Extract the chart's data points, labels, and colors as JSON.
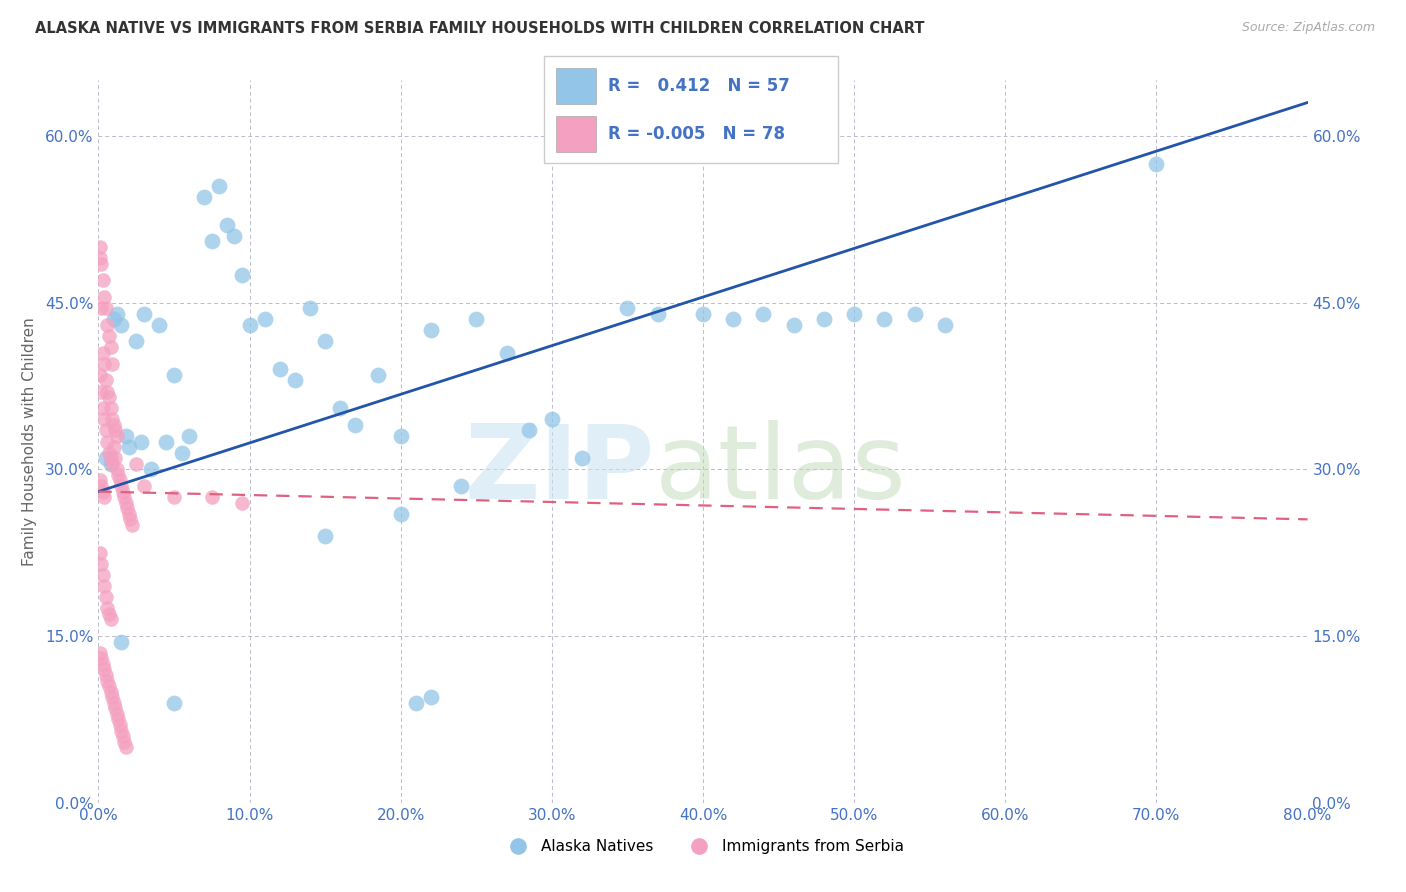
{
  "title": "ALASKA NATIVE VS IMMIGRANTS FROM SERBIA FAMILY HOUSEHOLDS WITH CHILDREN CORRELATION CHART",
  "source": "Source: ZipAtlas.com",
  "xlabel_ticks": [
    "0.0%",
    "10.0%",
    "20.0%",
    "30.0%",
    "40.0%",
    "50.0%",
    "60.0%",
    "70.0%",
    "80.0%"
  ],
  "xlabel_vals": [
    0,
    10,
    20,
    30,
    40,
    50,
    60,
    70,
    80
  ],
  "ylabel_ticks": [
    "0.0%",
    "15.0%",
    "30.0%",
    "45.0%",
    "60.0%"
  ],
  "ylabel_vals": [
    0,
    15,
    30,
    45,
    60
  ],
  "ylabel_label": "Family Households with Children",
  "xlim": [
    0,
    80
  ],
  "ylim": [
    0,
    65
  ],
  "legend_r_blue": "0.412",
  "legend_n_blue": "57",
  "legend_r_pink": "-0.005",
  "legend_n_pink": "78",
  "blue_color": "#92C5E8",
  "pink_color": "#F4A0C0",
  "trend_blue_color": "#2255AA",
  "trend_pink_color": "#E06080",
  "blue_trend_x0": 0,
  "blue_trend_y0": 28.0,
  "blue_trend_x1": 80,
  "blue_trend_y1": 63.0,
  "pink_trend_x0": 0,
  "pink_trend_y0": 28.0,
  "pink_trend_x1": 80,
  "pink_trend_y1": 25.5,
  "blue_scatter": [
    [
      0.5,
      31.0
    ],
    [
      0.8,
      30.5
    ],
    [
      1.0,
      43.5
    ],
    [
      1.2,
      44.0
    ],
    [
      1.5,
      43.0
    ],
    [
      1.8,
      33.0
    ],
    [
      2.0,
      32.0
    ],
    [
      2.5,
      41.5
    ],
    [
      2.8,
      32.5
    ],
    [
      3.0,
      44.0
    ],
    [
      3.5,
      30.0
    ],
    [
      4.0,
      43.0
    ],
    [
      4.5,
      32.5
    ],
    [
      5.0,
      38.5
    ],
    [
      5.5,
      31.5
    ],
    [
      6.0,
      33.0
    ],
    [
      7.0,
      54.5
    ],
    [
      7.5,
      50.5
    ],
    [
      8.0,
      55.5
    ],
    [
      8.5,
      52.0
    ],
    [
      9.0,
      51.0
    ],
    [
      9.5,
      47.5
    ],
    [
      10.0,
      43.0
    ],
    [
      11.0,
      43.5
    ],
    [
      12.0,
      39.0
    ],
    [
      13.0,
      38.0
    ],
    [
      14.0,
      44.5
    ],
    [
      15.0,
      41.5
    ],
    [
      16.0,
      35.5
    ],
    [
      17.0,
      34.0
    ],
    [
      18.5,
      38.5
    ],
    [
      20.0,
      33.0
    ],
    [
      22.0,
      42.5
    ],
    [
      24.0,
      28.5
    ],
    [
      25.0,
      43.5
    ],
    [
      27.0,
      40.5
    ],
    [
      28.5,
      33.5
    ],
    [
      30.0,
      34.5
    ],
    [
      32.0,
      31.0
    ],
    [
      35.0,
      44.5
    ],
    [
      37.0,
      44.0
    ],
    [
      40.0,
      44.0
    ],
    [
      42.0,
      43.5
    ],
    [
      44.0,
      44.0
    ],
    [
      46.0,
      43.0
    ],
    [
      48.0,
      43.5
    ],
    [
      50.0,
      44.0
    ],
    [
      52.0,
      43.5
    ],
    [
      54.0,
      44.0
    ],
    [
      56.0,
      43.0
    ],
    [
      70.0,
      57.5
    ],
    [
      1.5,
      14.5
    ],
    [
      5.0,
      9.0
    ],
    [
      15.0,
      24.0
    ],
    [
      20.0,
      26.0
    ],
    [
      21.0,
      9.0
    ],
    [
      22.0,
      9.5
    ]
  ],
  "pink_scatter": [
    [
      0.1,
      50.0
    ],
    [
      0.2,
      48.5
    ],
    [
      0.3,
      47.0
    ],
    [
      0.4,
      45.5
    ],
    [
      0.5,
      44.5
    ],
    [
      0.6,
      43.0
    ],
    [
      0.7,
      42.0
    ],
    [
      0.8,
      41.0
    ],
    [
      0.9,
      39.5
    ],
    [
      0.1,
      38.5
    ],
    [
      0.2,
      37.0
    ],
    [
      0.3,
      35.5
    ],
    [
      0.4,
      34.5
    ],
    [
      0.5,
      33.5
    ],
    [
      0.6,
      32.5
    ],
    [
      0.7,
      31.5
    ],
    [
      0.8,
      31.0
    ],
    [
      0.9,
      30.5
    ],
    [
      1.0,
      32.0
    ],
    [
      1.1,
      31.0
    ],
    [
      1.2,
      30.0
    ],
    [
      1.3,
      29.5
    ],
    [
      1.4,
      29.0
    ],
    [
      1.5,
      28.5
    ],
    [
      1.6,
      28.0
    ],
    [
      1.7,
      27.5
    ],
    [
      1.8,
      27.0
    ],
    [
      1.9,
      26.5
    ],
    [
      2.0,
      26.0
    ],
    [
      2.1,
      25.5
    ],
    [
      2.2,
      25.0
    ],
    [
      0.3,
      40.5
    ],
    [
      0.4,
      39.5
    ],
    [
      0.5,
      38.0
    ],
    [
      0.6,
      37.0
    ],
    [
      0.7,
      36.5
    ],
    [
      0.8,
      35.5
    ],
    [
      0.9,
      34.5
    ],
    [
      1.0,
      34.0
    ],
    [
      1.1,
      33.5
    ],
    [
      1.2,
      33.0
    ],
    [
      0.1,
      29.0
    ],
    [
      0.2,
      28.5
    ],
    [
      0.3,
      28.0
    ],
    [
      0.4,
      27.5
    ],
    [
      0.1,
      22.5
    ],
    [
      0.2,
      21.5
    ],
    [
      0.3,
      20.5
    ],
    [
      0.4,
      19.5
    ],
    [
      0.5,
      18.5
    ],
    [
      0.6,
      17.5
    ],
    [
      0.7,
      17.0
    ],
    [
      0.8,
      16.5
    ],
    [
      0.1,
      13.5
    ],
    [
      0.2,
      13.0
    ],
    [
      0.3,
      12.5
    ],
    [
      0.4,
      12.0
    ],
    [
      0.5,
      11.5
    ],
    [
      0.6,
      11.0
    ],
    [
      0.7,
      10.5
    ],
    [
      0.8,
      10.0
    ],
    [
      0.9,
      9.5
    ],
    [
      1.0,
      9.0
    ],
    [
      1.1,
      8.5
    ],
    [
      1.2,
      8.0
    ],
    [
      1.3,
      7.5
    ],
    [
      1.4,
      7.0
    ],
    [
      1.5,
      6.5
    ],
    [
      1.6,
      6.0
    ],
    [
      1.7,
      5.5
    ],
    [
      1.8,
      5.0
    ],
    [
      3.0,
      28.5
    ],
    [
      5.0,
      27.5
    ],
    [
      7.5,
      27.5
    ],
    [
      9.5,
      27.0
    ],
    [
      0.1,
      49.0
    ],
    [
      0.2,
      44.5
    ],
    [
      2.5,
      30.5
    ]
  ]
}
